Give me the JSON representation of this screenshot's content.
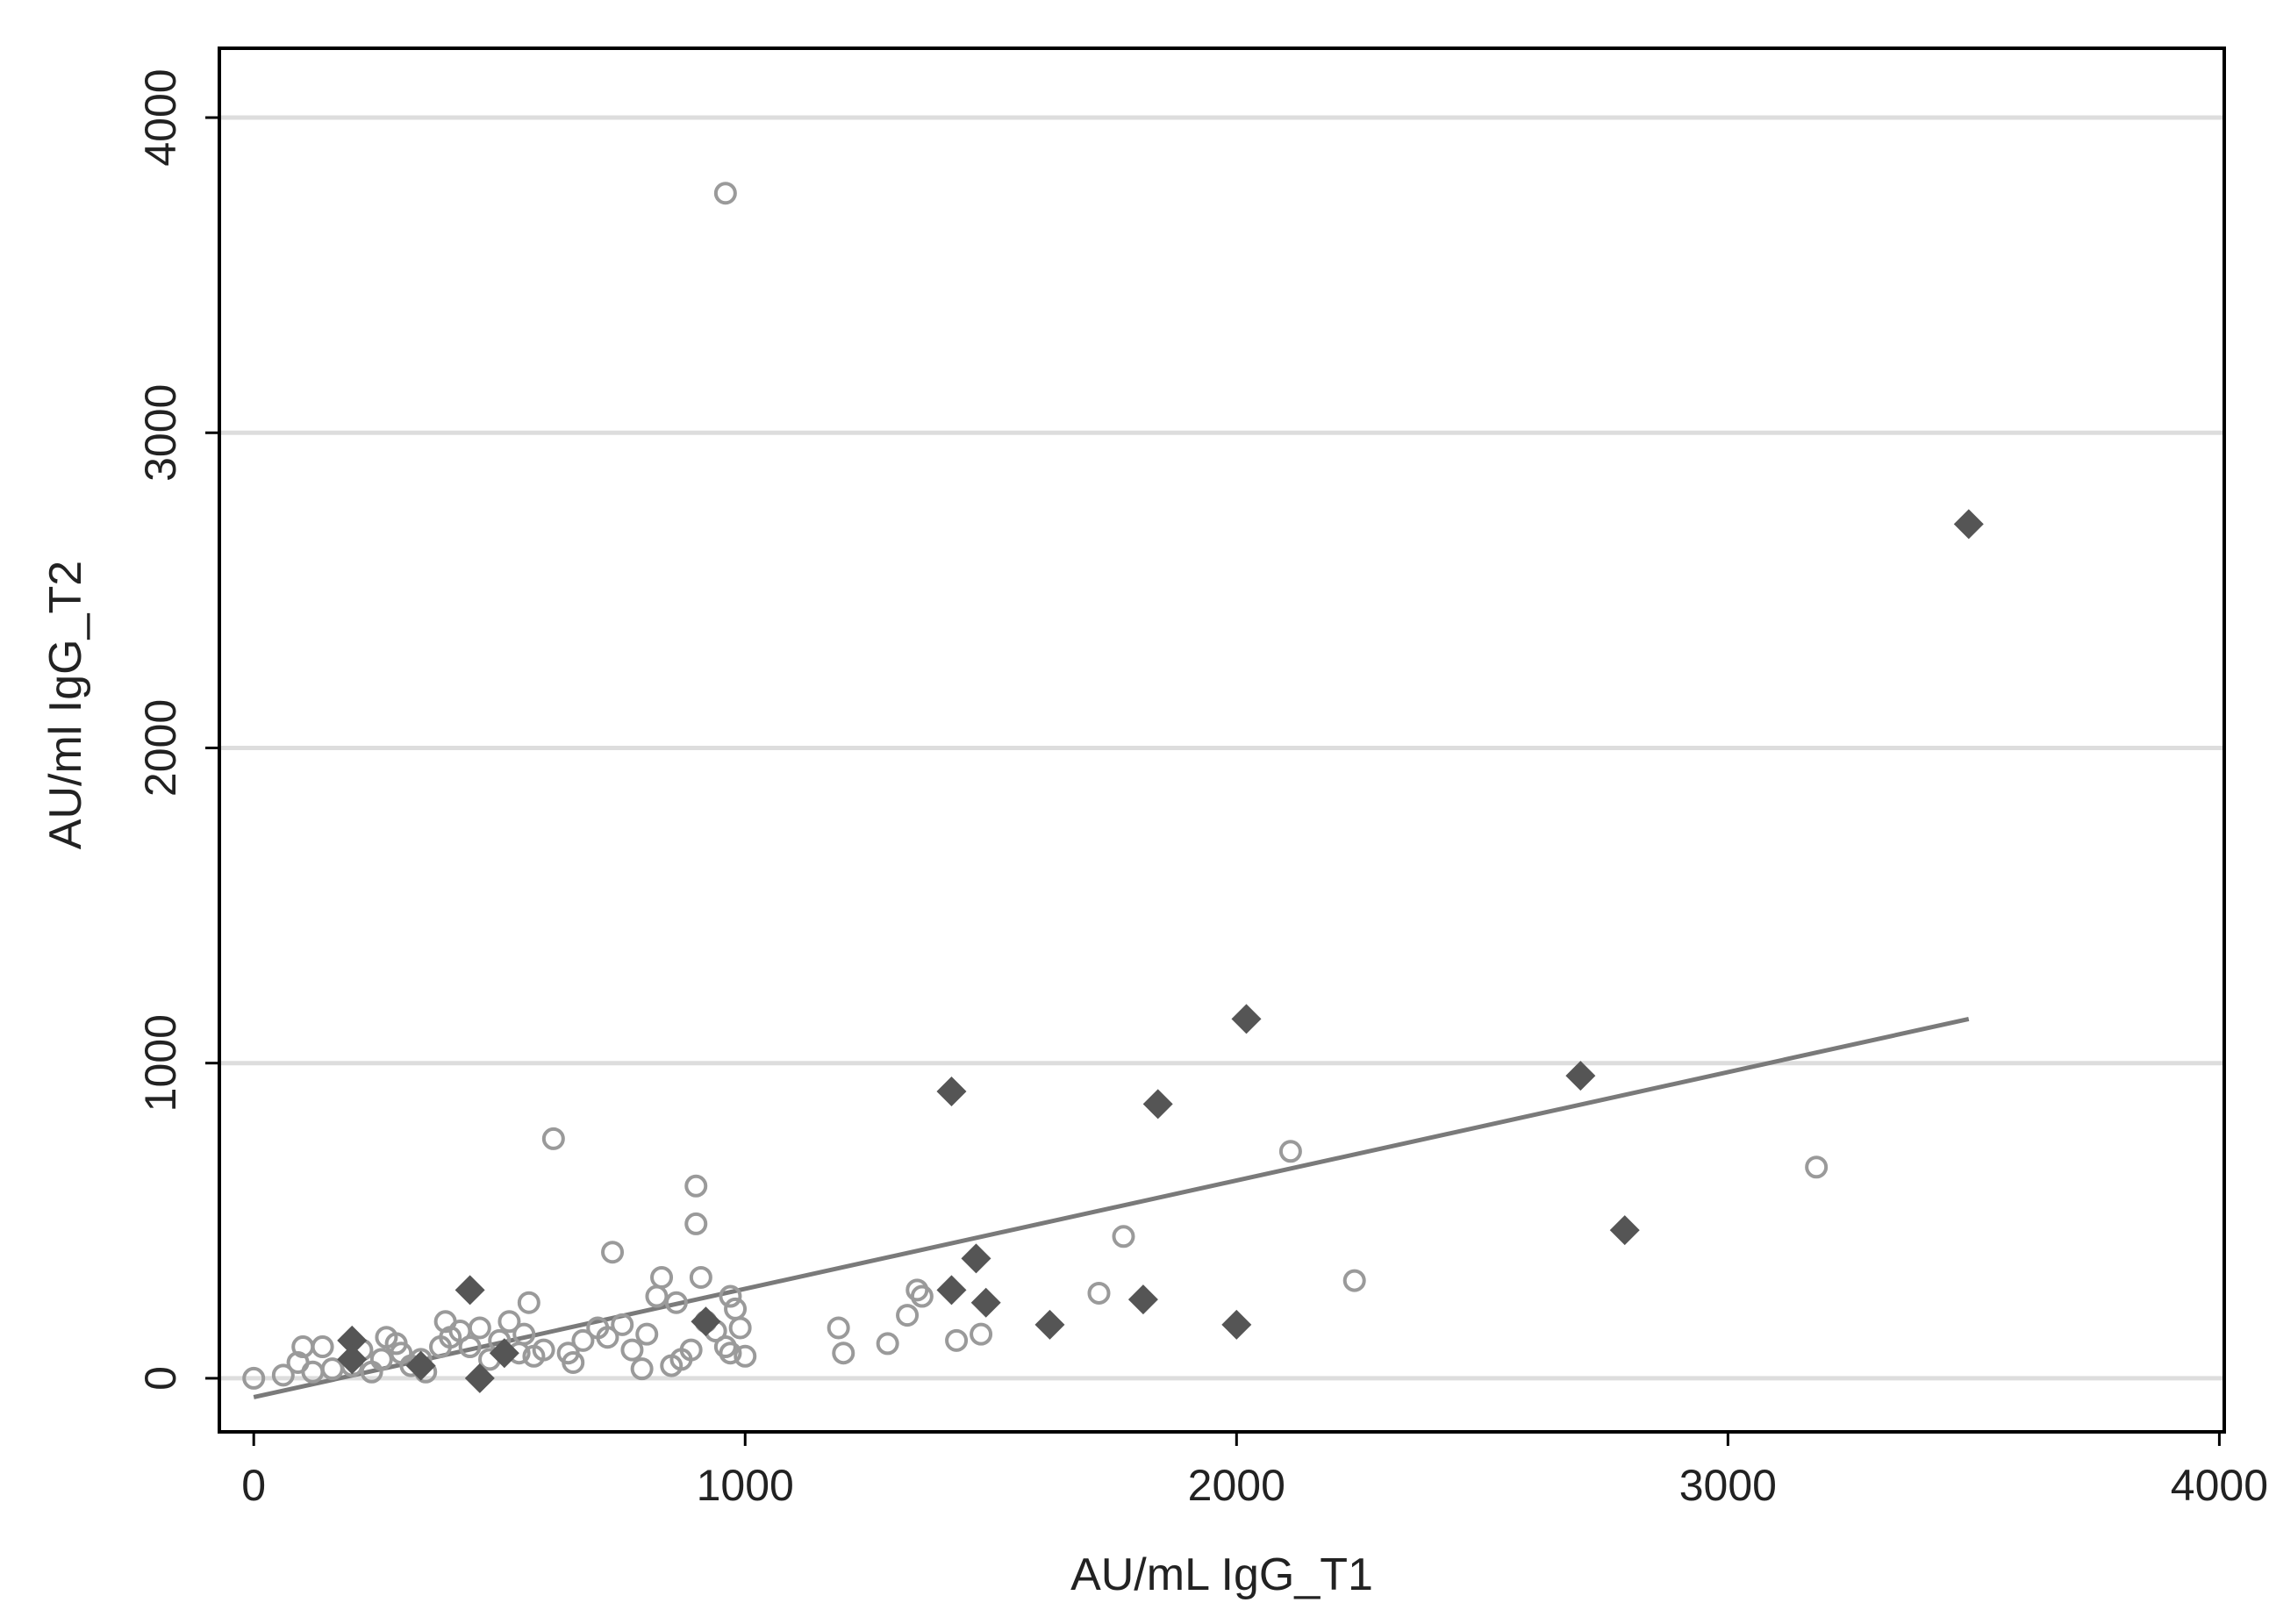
{
  "chart_data": {
    "type": "scatter",
    "title": "",
    "xlabel": "AU/mL IgG_T1",
    "ylabel": "AU/ml IgG_T2",
    "xlim": [
      -70,
      4010
    ],
    "ylim": [
      -170,
      4220
    ],
    "xticks": [
      0,
      1000,
      2000,
      3000,
      4000
    ],
    "yticks": [
      0,
      1000,
      2000,
      3000,
      4000
    ],
    "xtick_labels": [
      "0",
      "1000",
      "2000",
      "3000",
      "4000"
    ],
    "ytick_labels": [
      "0",
      "1000",
      "2000",
      "3000",
      "4000"
    ],
    "grid": "horizontal",
    "legend": "none",
    "colors": {
      "open_markers": "#9a9a9a",
      "filled_markers": "#555555",
      "fit_line": "#7a7a7a",
      "gridline": "#dddddd",
      "axis": "#000000"
    },
    "series": [
      {
        "marker": "open-circle",
        "points": [
          [
            0,
            0
          ],
          [
            60,
            10
          ],
          [
            90,
            50
          ],
          [
            100,
            100
          ],
          [
            120,
            20
          ],
          [
            140,
            100
          ],
          [
            160,
            30
          ],
          [
            200,
            40
          ],
          [
            220,
            90
          ],
          [
            240,
            20
          ],
          [
            260,
            60
          ],
          [
            270,
            130
          ],
          [
            290,
            110
          ],
          [
            300,
            80
          ],
          [
            320,
            40
          ],
          [
            340,
            60
          ],
          [
            350,
            20
          ],
          [
            380,
            100
          ],
          [
            390,
            180
          ],
          [
            400,
            130
          ],
          [
            420,
            150
          ],
          [
            440,
            100
          ],
          [
            460,
            160
          ],
          [
            480,
            60
          ],
          [
            500,
            120
          ],
          [
            520,
            180
          ],
          [
            540,
            80
          ],
          [
            550,
            140
          ],
          [
            560,
            240
          ],
          [
            570,
            70
          ],
          [
            590,
            90
          ],
          [
            610,
            760
          ],
          [
            640,
            80
          ],
          [
            650,
            50
          ],
          [
            670,
            120
          ],
          [
            700,
            160
          ],
          [
            720,
            130
          ],
          [
            730,
            400
          ],
          [
            750,
            170
          ],
          [
            770,
            90
          ],
          [
            790,
            30
          ],
          [
            800,
            140
          ],
          [
            820,
            260
          ],
          [
            830,
            320
          ],
          [
            850,
            40
          ],
          [
            860,
            240
          ],
          [
            870,
            60
          ],
          [
            890,
            90
          ],
          [
            900,
            610
          ],
          [
            900,
            490
          ],
          [
            910,
            320
          ],
          [
            920,
            180
          ],
          [
            940,
            150
          ],
          [
            960,
            100
          ],
          [
            970,
            80
          ],
          [
            970,
            260
          ],
          [
            980,
            220
          ],
          [
            990,
            160
          ],
          [
            1000,
            70
          ],
          [
            960,
            3760
          ],
          [
            1190,
            160
          ],
          [
            1200,
            80
          ],
          [
            1290,
            110
          ],
          [
            1330,
            200
          ],
          [
            1350,
            280
          ],
          [
            1360,
            260
          ],
          [
            1430,
            120
          ],
          [
            1480,
            140
          ],
          [
            1720,
            270
          ],
          [
            1770,
            450
          ],
          [
            2110,
            720
          ],
          [
            2240,
            310
          ],
          [
            3180,
            670
          ]
        ]
      },
      {
        "marker": "filled-diamond",
        "points": [
          [
            200,
            120
          ],
          [
            200,
            60
          ],
          [
            340,
            40
          ],
          [
            440,
            280
          ],
          [
            460,
            0
          ],
          [
            510,
            80
          ],
          [
            920,
            180
          ],
          [
            1420,
            280
          ],
          [
            1420,
            910
          ],
          [
            1470,
            380
          ],
          [
            1490,
            240
          ],
          [
            1620,
            170
          ],
          [
            1810,
            250
          ],
          [
            1840,
            870
          ],
          [
            2000,
            170
          ],
          [
            2020,
            1140
          ],
          [
            2700,
            960
          ],
          [
            2790,
            470
          ],
          [
            3490,
            2710
          ]
        ]
      }
    ],
    "fit_line": {
      "x": [
        0,
        3490
      ],
      "y": [
        -60,
        1140
      ]
    }
  }
}
